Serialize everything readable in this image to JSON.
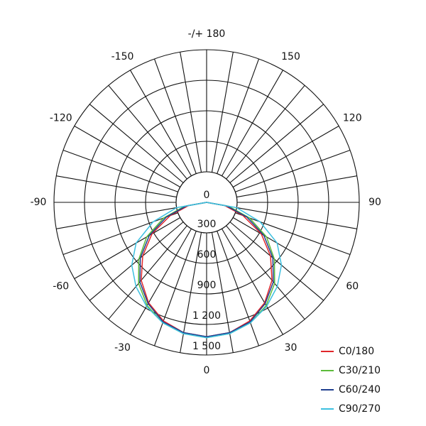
{
  "chart_data": {
    "type": "polar",
    "x": [
      -90,
      -80,
      -70,
      -60,
      -50,
      -40,
      -30,
      -20,
      -10,
      0,
      10,
      20,
      30,
      40,
      50,
      60,
      70,
      80,
      90
    ],
    "series": [
      {
        "name": "C0/180",
        "color": "#e0262a",
        "values": [
          0,
          180,
          380,
          620,
          820,
          1000,
          1140,
          1240,
          1300,
          1320,
          1300,
          1240,
          1140,
          1000,
          820,
          620,
          380,
          180,
          0
        ]
      },
      {
        "name": "C30/210",
        "color": "#5cbb3a",
        "values": [
          0,
          220,
          450,
          680,
          870,
          1040,
          1170,
          1260,
          1310,
          1330,
          1310,
          1260,
          1170,
          1040,
          870,
          680,
          450,
          220,
          0
        ]
      },
      {
        "name": "C60/240",
        "color": "#1f3f8f",
        "values": [
          0,
          200,
          420,
          650,
          850,
          1020,
          1150,
          1250,
          1300,
          1320,
          1300,
          1250,
          1150,
          1020,
          850,
          650,
          420,
          200,
          0
        ]
      },
      {
        "name": "C90/270",
        "color": "#3cc0e0",
        "values": [
          0,
          300,
          560,
          800,
          960,
          1080,
          1180,
          1260,
          1310,
          1330,
          1310,
          1260,
          1180,
          1080,
          960,
          800,
          560,
          300,
          0
        ]
      }
    ],
    "rlim": [
      0,
      1500
    ],
    "rticks": [
      0,
      300,
      600,
      900,
      {
        "value": 1200,
        "label": "1 200"
      },
      {
        "value": 1500,
        "label": "1 500"
      }
    ],
    "angleticks": [
      0,
      30,
      60,
      90,
      120,
      150,
      {
        "value": 180,
        "label": "-/+ 180"
      },
      -150,
      -120,
      -90,
      -60,
      -30
    ],
    "legend": "lower right"
  }
}
